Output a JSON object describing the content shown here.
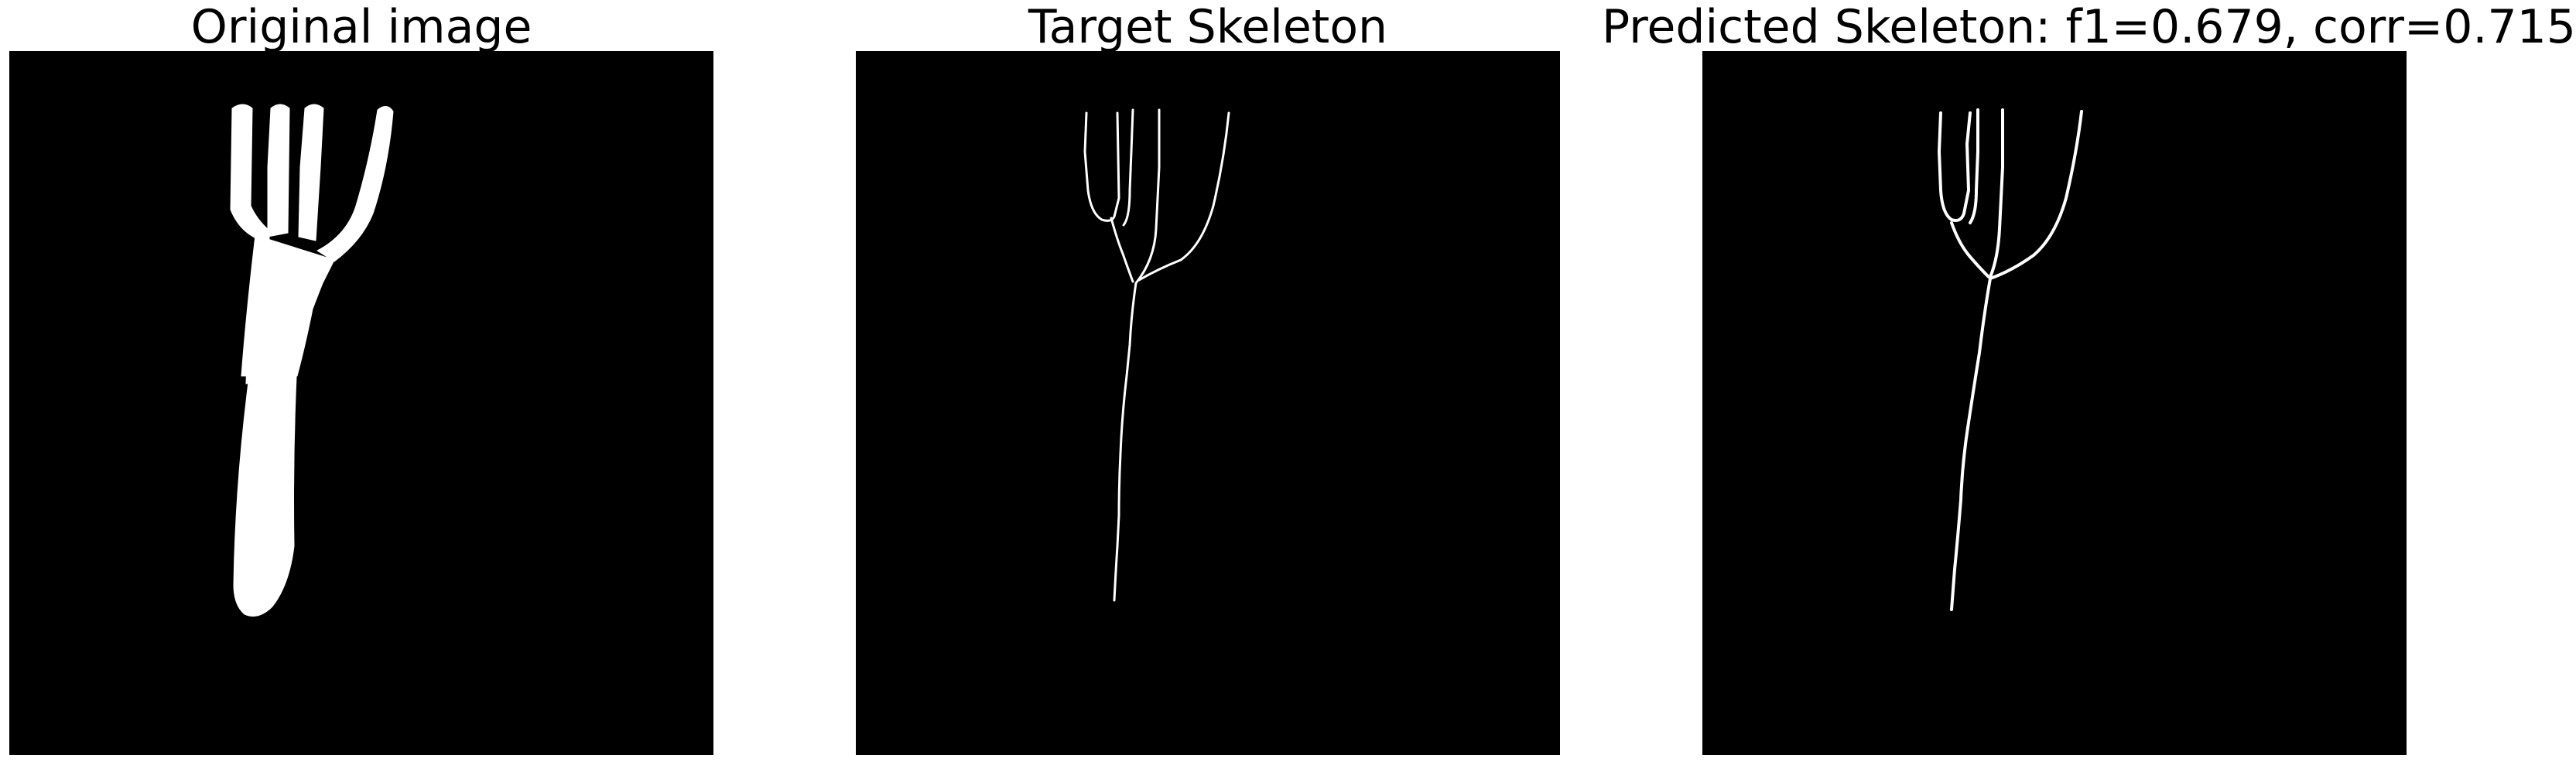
{
  "figure": {
    "panels": [
      {
        "id": "original",
        "title": "Original image"
      },
      {
        "id": "target",
        "title": "Target Skeleton"
      },
      {
        "id": "predicted",
        "title": "Predicted Skeleton: f1=0.679, corr=0.715"
      }
    ],
    "colors": {
      "background": "#000000",
      "foreground": "#ffffff",
      "page": "#ffffff"
    }
  }
}
